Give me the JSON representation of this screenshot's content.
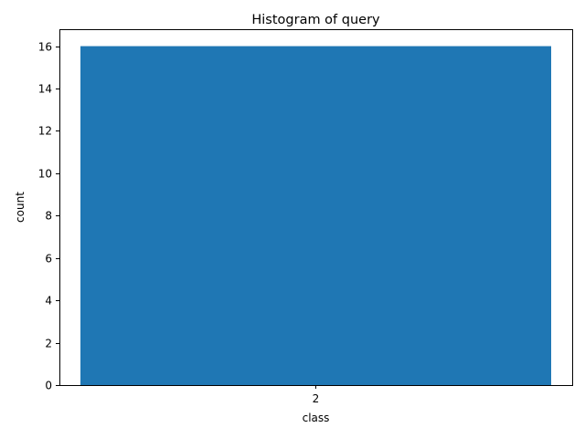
{
  "chart_data": {
    "type": "bar",
    "title": "Histogram of query",
    "xlabel": "class",
    "ylabel": "count",
    "categories": [
      "2"
    ],
    "values": [
      16
    ],
    "ylim": [
      0,
      16.8
    ],
    "yticks": [
      0,
      2,
      4,
      6,
      8,
      10,
      12,
      14,
      16
    ],
    "grid": false,
    "legend": "none",
    "bar_color": "#1f77b4"
  }
}
